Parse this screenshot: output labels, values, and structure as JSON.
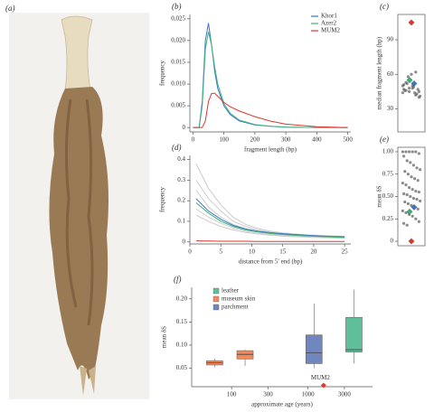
{
  "photo_label": "(a)",
  "chart_data": [
    {
      "type": "line",
      "label": "(b)",
      "xlabel": "fragment length (bp)",
      "ylabel": "frequency",
      "legend": "upper right",
      "x": [
        0,
        20,
        30,
        40,
        50,
        60,
        70,
        80,
        100,
        120,
        150,
        200,
        250,
        300,
        400,
        500
      ],
      "series": [
        {
          "name": "Khor1",
          "color": "#3a78c2",
          "values": [
            0,
            0,
            0.006,
            0.02,
            0.024,
            0.019,
            0.013,
            0.009,
            0.005,
            0.003,
            0.0015,
            0.0006,
            0.0003,
            0.0001,
            0,
            0
          ]
        },
        {
          "name": "Azer2",
          "color": "#3fb07a",
          "values": [
            0,
            0,
            0.005,
            0.018,
            0.022,
            0.019,
            0.014,
            0.01,
            0.0055,
            0.0033,
            0.0017,
            0.0007,
            0.0003,
            0.0001,
            0,
            0
          ]
        },
        {
          "name": "MUM2",
          "color": "#e0362b",
          "values": [
            0,
            0,
            0,
            0.0015,
            0.006,
            0.0078,
            0.0079,
            0.0072,
            0.0058,
            0.0048,
            0.0038,
            0.0025,
            0.0015,
            0.0008,
            0.0002,
            0
          ]
        }
      ],
      "xlim": [
        -10,
        510
      ],
      "ylim": [
        -0.001,
        0.026
      ],
      "xticks": [
        0,
        100,
        200,
        300,
        400,
        500
      ],
      "yticks": [
        0,
        0.005,
        {
          "value": 0.01,
          "label": "0.010"
        },
        0.015,
        {
          "value": 0.02,
          "label": "0.020"
        },
        0.025
      ]
    },
    {
      "type": "strip",
      "label": "(c)",
      "ylabel": "median fragment length (bp)",
      "ylim": [
        10,
        112
      ],
      "yticks": [
        30,
        60,
        90
      ],
      "series": [
        {
          "color": "#666666",
          "marker": "circle",
          "values": [
            44,
            46,
            48,
            50,
            42,
            45,
            47,
            52,
            55,
            49,
            43,
            41,
            46,
            58,
            60,
            44,
            47,
            50,
            53,
            45,
            48,
            62,
            40,
            51
          ]
        },
        {
          "color": "#3a78c2",
          "marker": "diamond",
          "values": [
            52
          ]
        },
        {
          "color": "#3fb07a",
          "marker": "diamond",
          "values": [
            55
          ]
        },
        {
          "color": "#e0362b",
          "marker": "diamond",
          "values": [
            105
          ]
        }
      ]
    },
    {
      "type": "line",
      "label": "(d)",
      "xlabel": "distance from 5′ end (bp)",
      "ylabel": "frequency",
      "x": [
        1,
        3,
        5,
        7,
        9,
        11,
        13,
        15,
        17,
        19,
        21,
        23,
        25
      ],
      "series": [
        {
          "color": "#cccccc",
          "values": [
            0.38,
            0.26,
            0.18,
            0.12,
            0.085,
            0.065,
            0.052,
            0.044,
            0.038,
            0.034,
            0.031,
            0.029,
            0.027
          ]
        },
        {
          "color": "#cccccc",
          "values": [
            0.3,
            0.21,
            0.15,
            0.1,
            0.075,
            0.058,
            0.047,
            0.04,
            0.035,
            0.031,
            0.028,
            0.026,
            0.024
          ]
        },
        {
          "color": "#cccccc",
          "values": [
            0.25,
            0.17,
            0.12,
            0.085,
            0.063,
            0.05,
            0.041,
            0.035,
            0.031,
            0.028,
            0.025,
            0.023,
            0.021
          ]
        },
        {
          "color": "#cccccc",
          "values": [
            0.16,
            0.12,
            0.09,
            0.068,
            0.052,
            0.042,
            0.036,
            0.031,
            0.028,
            0.025,
            0.023,
            0.021,
            0.02
          ]
        },
        {
          "color": "#cccccc",
          "values": [
            0.13,
            0.1,
            0.075,
            0.058,
            0.046,
            0.038,
            0.032,
            0.028,
            0.025,
            0.023,
            0.021,
            0.019,
            0.018
          ]
        },
        {
          "color": "#3a78c2",
          "values": [
            0.21,
            0.15,
            0.11,
            0.08,
            0.063,
            0.052,
            0.045,
            0.04,
            0.036,
            0.032,
            0.029,
            0.027,
            0.025
          ]
        },
        {
          "color": "#3fb07a",
          "values": [
            0.19,
            0.14,
            0.1,
            0.075,
            0.058,
            0.048,
            0.041,
            0.036,
            0.032,
            0.029,
            0.026,
            0.024,
            0.022
          ]
        },
        {
          "color": "#e0362b",
          "values": [
            0.005,
            0.004,
            0.003,
            0.003,
            0.003,
            0.002,
            0.002,
            0.002,
            0.002,
            0.002,
            0.002,
            0.002,
            0.002
          ]
        }
      ],
      "xlim": [
        0,
        26
      ],
      "ylim": [
        -0.01,
        0.42
      ],
      "xticks": [
        0,
        5,
        10,
        15,
        20,
        25
      ],
      "yticks": [
        0,
        0.1,
        0.2,
        0.3,
        0.4
      ]
    },
    {
      "type": "strip",
      "label": "(e)",
      "ylabel": "mean δS",
      "ylim": [
        -0.05,
        1.05
      ],
      "yticks": [
        0,
        0.25,
        {
          "value": 0.5,
          "label": "0.50"
        },
        0.75,
        {
          "value": 1,
          "label": "1.00"
        }
      ],
      "series": [
        {
          "color": "#666666",
          "marker": "circle",
          "values": [
            1,
            1,
            1,
            1,
            1,
            0.98,
            0.95,
            0.9,
            0.88,
            0.85,
            0.82,
            0.8,
            0.78,
            0.75,
            0.72,
            0.7,
            0.68,
            0.65,
            0.63,
            0.6,
            0.58,
            0.56,
            0.55,
            0.53,
            0.52,
            0.5,
            0.48,
            0.47,
            0.45,
            0.44,
            0.42,
            0.4,
            0.38,
            0.36,
            0.34,
            0.32,
            0.3,
            0.28,
            0.25,
            0.22,
            0.2,
            0.18
          ]
        },
        {
          "color": "#3a78c2",
          "marker": "diamond",
          "values": [
            0.38
          ]
        },
        {
          "color": "#3fb07a",
          "marker": "diamond",
          "values": [
            0.33
          ]
        },
        {
          "color": "#e0362b",
          "marker": "diamond",
          "values": [
            0
          ]
        }
      ]
    },
    {
      "type": "box",
      "label": "(f)",
      "xlabel": "approximate age (years)",
      "ylabel": "mean δS",
      "xlog": true,
      "legend": "upper left",
      "xlim": [
        30,
        7000
      ],
      "ylim": [
        0.01,
        0.225
      ],
      "xticks": [
        100,
        300,
        1000,
        3000
      ],
      "yticks": [
        0.05,
        {
          "value": 0.1,
          "label": "0.10"
        },
        0.15,
        {
          "value": 0.2,
          "label": "0.20"
        }
      ],
      "series": [
        {
          "name": "leather",
          "color": "#5fbf9a",
          "boxes": [
            {
              "x": 4000,
              "min": 0.06,
              "q1": 0.085,
              "median": 0.09,
              "q3": 0.16,
              "max": 0.22
            }
          ]
        },
        {
          "name": "museum skin",
          "color": "#f08a5d",
          "boxes": [
            {
              "x": 60,
              "min": 0.052,
              "q1": 0.057,
              "median": 0.062,
              "q3": 0.066,
              "max": 0.07
            },
            {
              "x": 150,
              "min": 0.055,
              "q1": 0.07,
              "median": 0.08,
              "q3": 0.088,
              "max": 0.09
            }
          ]
        },
        {
          "name": "parchment",
          "color": "#6f86bf",
          "boxes": [
            {
              "x": 1200,
              "min": 0.05,
              "q1": 0.06,
              "median": 0.083,
              "q3": 0.122,
              "max": 0.19
            }
          ]
        }
      ],
      "annotations": [
        {
          "x": 1600,
          "y": 0.013,
          "text": "MUM2",
          "color": "#e0362b"
        }
      ]
    }
  ]
}
